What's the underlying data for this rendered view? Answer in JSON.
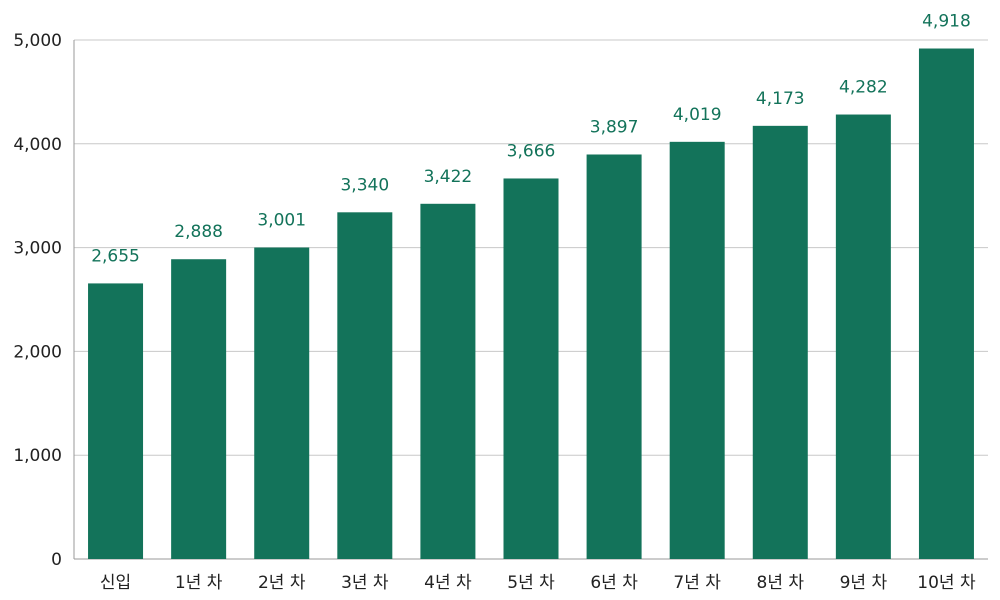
{
  "chart_data": {
    "type": "bar",
    "categories": [
      "신입",
      "1년 차",
      "2년 차",
      "3년 차",
      "4년 차",
      "5년 차",
      "6년 차",
      "7년 차",
      "8년 차",
      "9년 차",
      "10년 차"
    ],
    "values": [
      2655,
      2888,
      3001,
      3340,
      3422,
      3666,
      3897,
      4019,
      4173,
      4282,
      4918
    ],
    "value_labels": [
      "2,655",
      "2,888",
      "3,001",
      "3,340",
      "3,422",
      "3,666",
      "3,897",
      "4,019",
      "4,173",
      "4,282",
      "4,918"
    ],
    "yticks": [
      0,
      1000,
      2000,
      3000,
      4000,
      5000
    ],
    "ytick_labels": [
      "0",
      "1,000",
      "2,000",
      "3,000",
      "4,000",
      "5,000"
    ],
    "ylim": [
      0,
      5000
    ],
    "title": "",
    "xlabel": "",
    "ylabel": "",
    "grid": true,
    "legend": false,
    "colors": {
      "bar": "#13735a",
      "data_label": "#13735a",
      "text": "#222222",
      "grid": "#c8c8c8"
    }
  }
}
